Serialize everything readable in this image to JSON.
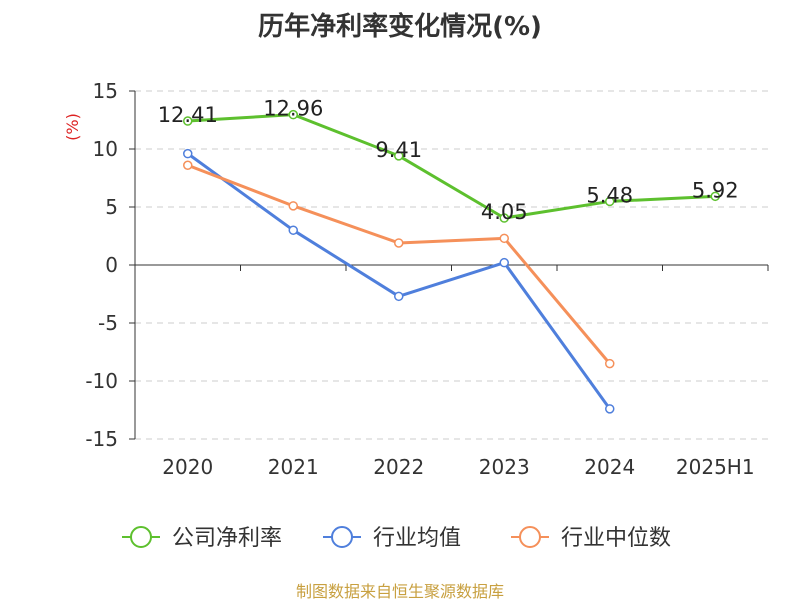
{
  "chart_data": {
    "type": "line",
    "title": "历年净利率变化情况(%)",
    "ylabel": "(%)",
    "categories": [
      "2020",
      "2021",
      "2022",
      "2023",
      "2024",
      "2025H1"
    ],
    "y_ticks": [
      "15",
      "10",
      "5",
      "0",
      "-5",
      "-10",
      "-15"
    ],
    "ylim": [
      -15,
      15
    ],
    "grid": true,
    "legend_position": "bottom",
    "series": [
      {
        "name": "公司净利率",
        "color": "#5dc02e",
        "values": [
          12.41,
          12.96,
          9.41,
          4.05,
          5.48,
          5.92
        ],
        "labels": [
          "12.41",
          "12.96",
          "9.41",
          "4.05",
          "5.48",
          "5.92"
        ]
      },
      {
        "name": "行业均值",
        "color": "#4f7fdc",
        "values": [
          9.6,
          3.0,
          -2.7,
          0.2,
          -12.4,
          null
        ]
      },
      {
        "name": "行业中位数",
        "color": "#f5905a",
        "values": [
          8.6,
          5.1,
          1.9,
          2.3,
          -8.5,
          null
        ]
      }
    ]
  },
  "source": "制图数据来自恒生聚源数据库"
}
